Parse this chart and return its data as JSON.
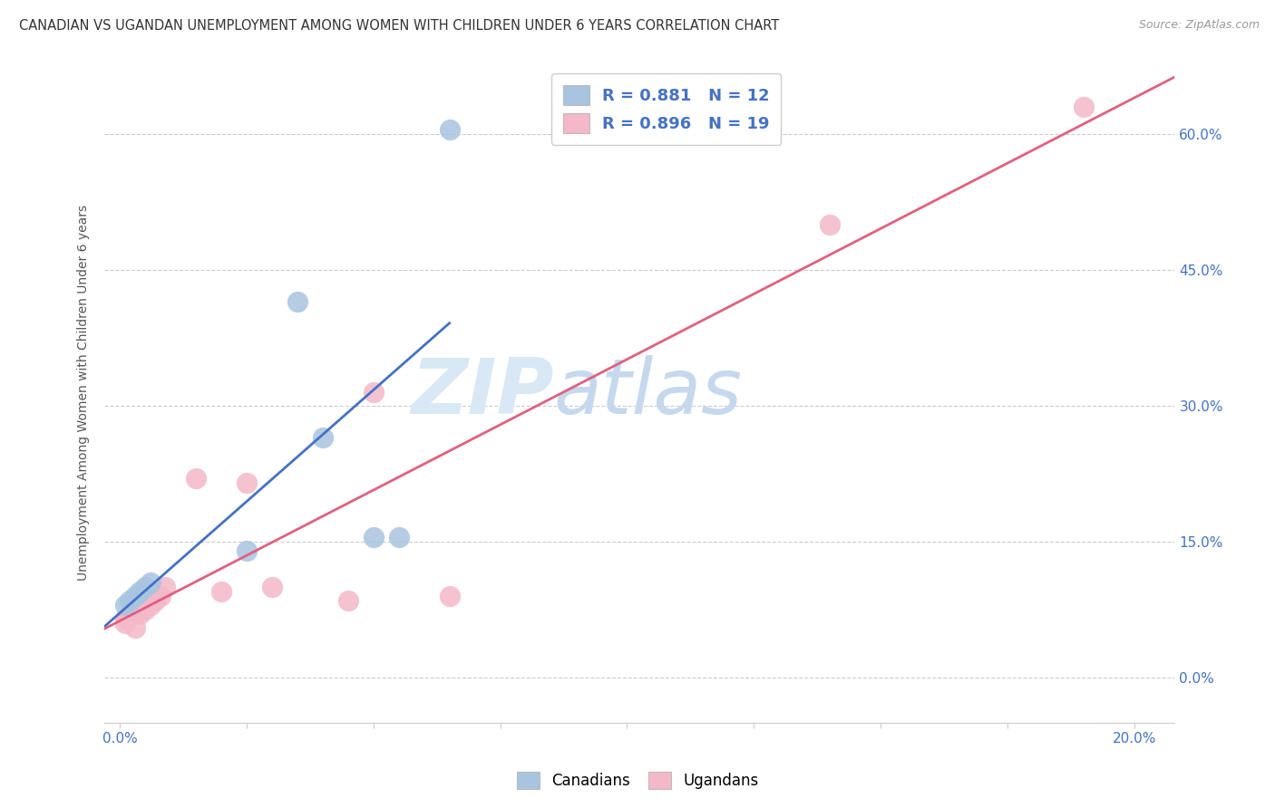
{
  "title": "CANADIAN VS UGANDAN UNEMPLOYMENT AMONG WOMEN WITH CHILDREN UNDER 6 YEARS CORRELATION CHART",
  "source": "Source: ZipAtlas.com",
  "ylabel": "Unemployment Among Women with Children Under 6 years",
  "xlim": [
    -0.003,
    0.208
  ],
  "ylim": [
    -0.05,
    0.68
  ],
  "xtick_vals": [
    0.0,
    0.025,
    0.05,
    0.075,
    0.1,
    0.125,
    0.15,
    0.175,
    0.2
  ],
  "xtick_labels": [
    "0.0%",
    "",
    "",
    "",
    "",
    "",
    "",
    "",
    "20.0%"
  ],
  "ytick_vals": [
    0.0,
    0.15,
    0.3,
    0.45,
    0.6
  ],
  "ytick_labels": [
    "0.0%",
    "15.0%",
    "30.0%",
    "45.0%",
    "60.0%"
  ],
  "canadian_x": [
    0.001,
    0.002,
    0.003,
    0.004,
    0.005,
    0.006,
    0.025,
    0.035,
    0.04,
    0.05,
    0.055,
    0.065
  ],
  "canadian_y": [
    0.08,
    0.085,
    0.09,
    0.095,
    0.1,
    0.105,
    0.14,
    0.415,
    0.265,
    0.155,
    0.155,
    0.605
  ],
  "ugandan_x": [
    0.001,
    0.001,
    0.002,
    0.003,
    0.004,
    0.005,
    0.006,
    0.007,
    0.008,
    0.009,
    0.015,
    0.02,
    0.025,
    0.03,
    0.045,
    0.05,
    0.065,
    0.14,
    0.19
  ],
  "ugandan_y": [
    0.06,
    0.065,
    0.07,
    0.055,
    0.07,
    0.075,
    0.08,
    0.085,
    0.09,
    0.1,
    0.22,
    0.095,
    0.215,
    0.1,
    0.085,
    0.315,
    0.09,
    0.5,
    0.63
  ],
  "canadian_color": "#a8c4e0",
  "ugandan_color": "#f4b8c8",
  "canadian_line_color": "#4472c4",
  "ugandan_line_color": "#e06080",
  "canadian_r": "0.881",
  "canadian_n": "12",
  "ugandan_r": "0.896",
  "ugandan_n": "19",
  "legend_canadian": "Canadians",
  "legend_ugandan": "Ugandans",
  "watermark_zip": "ZIP",
  "watermark_atlas": "atlas",
  "background_color": "#ffffff",
  "grid_color": "#cccccc",
  "title_color": "#333333",
  "axis_label_color": "#555555",
  "tick_color": "#4472c4",
  "marker_size": 280
}
